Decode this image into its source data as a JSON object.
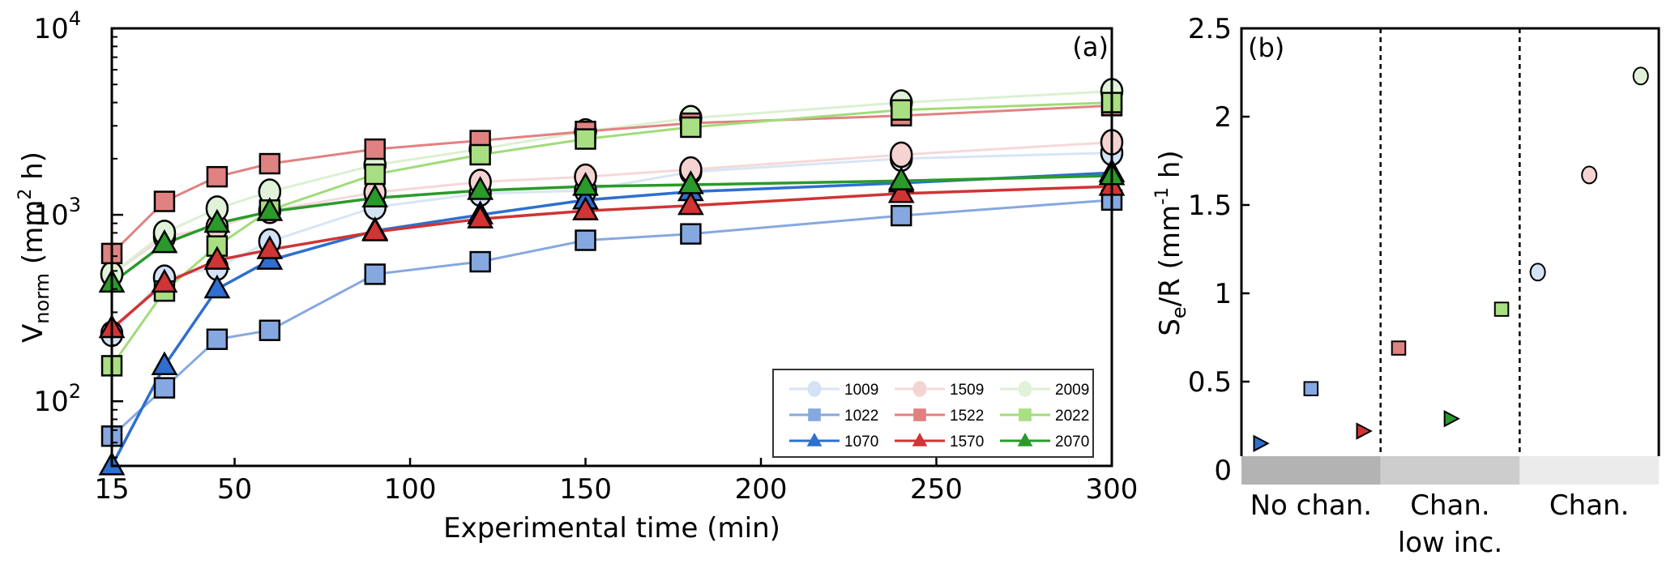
{
  "chart_data": [
    {
      "panel": "(a)",
      "type": "line",
      "title": "",
      "xlabel": "Experimental time (min)",
      "ylabel": "V_norm (mm^2 h)",
      "ylabel_main": "V",
      "ylabel_sub": "norm",
      "ylabel_rest": " (mm",
      "ylabel_sup": "2",
      "ylabel_end": " h)",
      "yscale": "log",
      "xlim": [
        15,
        300
      ],
      "ylim": [
        45,
        10000
      ],
      "xticks": [
        15,
        50,
        100,
        150,
        200,
        250,
        300
      ],
      "yticks": [
        {
          "value": 100,
          "base": "10",
          "exp": "2"
        },
        {
          "value": 1000,
          "base": "10",
          "exp": "3"
        },
        {
          "value": 10000,
          "base": "10",
          "exp": "4"
        }
      ],
      "grid": false,
      "legend_position": "bottom-right",
      "x": [
        15,
        30,
        45,
        60,
        90,
        120,
        150,
        180,
        240,
        300
      ],
      "series": [
        {
          "name": "1009",
          "marker": "circle",
          "color": "#d3e2f5",
          "line_color": "#d8e5f6",
          "values": [
            230,
            460,
            520,
            720,
            1100,
            1300,
            1350,
            1700,
            2000,
            2150
          ]
        },
        {
          "name": "1509",
          "marker": "circle",
          "color": "#f5d3d3",
          "line_color": "#f6d8d8",
          "values": [
            480,
            760,
            860,
            1050,
            1320,
            1500,
            1600,
            1750,
            2100,
            2450
          ]
        },
        {
          "name": "2009",
          "marker": "circle",
          "color": "#e0f3d8",
          "line_color": "#dcf0d2",
          "values": [
            480,
            800,
            1080,
            1330,
            1850,
            2250,
            2800,
            3300,
            4000,
            4600
          ]
        },
        {
          "name": "1022",
          "marker": "square",
          "color": "#86a8e0",
          "line_color": "#86a8e0",
          "values": [
            65,
            118,
            215,
            240,
            480,
            560,
            730,
            790,
            990,
            1200
          ]
        },
        {
          "name": "1522",
          "marker": "square",
          "color": "#e08282",
          "line_color": "#e08282",
          "values": [
            620,
            1180,
            1600,
            1880,
            2250,
            2500,
            2800,
            3100,
            3400,
            3850
          ]
        },
        {
          "name": "2022",
          "marker": "square",
          "color": "#a8df82",
          "line_color": "#a0dc78",
          "values": [
            155,
            390,
            680,
            1060,
            1650,
            2100,
            2550,
            2950,
            3650,
            4000
          ]
        },
        {
          "name": "1070",
          "marker": "triangle",
          "color": "#2e6fcf",
          "line_color": "#2e6fcf",
          "values": [
            45,
            155,
            400,
            570,
            820,
            1000,
            1200,
            1330,
            1480,
            1680
          ]
        },
        {
          "name": "1570",
          "marker": "triangle",
          "color": "#d03434",
          "line_color": "#d03434",
          "values": [
            245,
            430,
            570,
            650,
            810,
            950,
            1050,
            1120,
            1300,
            1420
          ]
        },
        {
          "name": "2070",
          "marker": "triangle",
          "color": "#2a9a2a",
          "line_color": "#2a9a2a",
          "values": [
            430,
            700,
            900,
            1040,
            1230,
            1350,
            1420,
            1450,
            1520,
            1620
          ]
        }
      ]
    },
    {
      "panel": "(b)",
      "type": "scatter",
      "title": "",
      "xlabel": "",
      "ylabel": "S_e/R (mm^-1 h)",
      "ylabel_main": "S",
      "ylabel_sub": "e",
      "ylabel_rest": "/R (mm",
      "ylabel_sup": "-1",
      "ylabel_end": " h)",
      "ylim": [
        0,
        2.5
      ],
      "yticks": [
        "0",
        "0.5",
        "1",
        "1.5",
        "2",
        "2.5"
      ],
      "grid": false,
      "categories": [
        {
          "label_lines": [
            "No chan."
          ],
          "band_color": "#b3b3b3"
        },
        {
          "label_lines": [
            "Chan.",
            "low inc."
          ],
          "band_color": "#cdcdcd"
        },
        {
          "label_lines": [
            "Chan."
          ],
          "band_color": "#ebebeb"
        }
      ],
      "points": [
        {
          "series": "1070",
          "category": 0,
          "slot": 0,
          "marker": "triangle-right",
          "color": "#2e6fcf",
          "value": 0.15
        },
        {
          "series": "1022",
          "category": 0,
          "slot": 1,
          "marker": "square",
          "color": "#86a8e0",
          "value": 0.46
        },
        {
          "series": "1570",
          "category": 0,
          "slot": 2,
          "marker": "triangle-right",
          "color": "#d03434",
          "value": 0.22
        },
        {
          "series": "1522",
          "category": 1,
          "slot": 0,
          "marker": "square",
          "color": "#e08282",
          "value": 0.69
        },
        {
          "series": "2070",
          "category": 1,
          "slot": 1,
          "marker": "triangle-right",
          "color": "#2a9a2a",
          "value": 0.29
        },
        {
          "series": "2022",
          "category": 1,
          "slot": 2,
          "marker": "square",
          "color": "#a8df82",
          "value": 0.91
        },
        {
          "series": "1009",
          "category": 2,
          "slot": 0,
          "marker": "circle",
          "color": "#d3e2f5",
          "value": 1.12
        },
        {
          "series": "1509",
          "category": 2,
          "slot": 1,
          "marker": "circle",
          "color": "#f5d3d3",
          "value": 1.67
        },
        {
          "series": "2009",
          "category": 2,
          "slot": 2,
          "marker": "circle",
          "color": "#e0f3d8",
          "value": 2.23
        }
      ]
    }
  ]
}
